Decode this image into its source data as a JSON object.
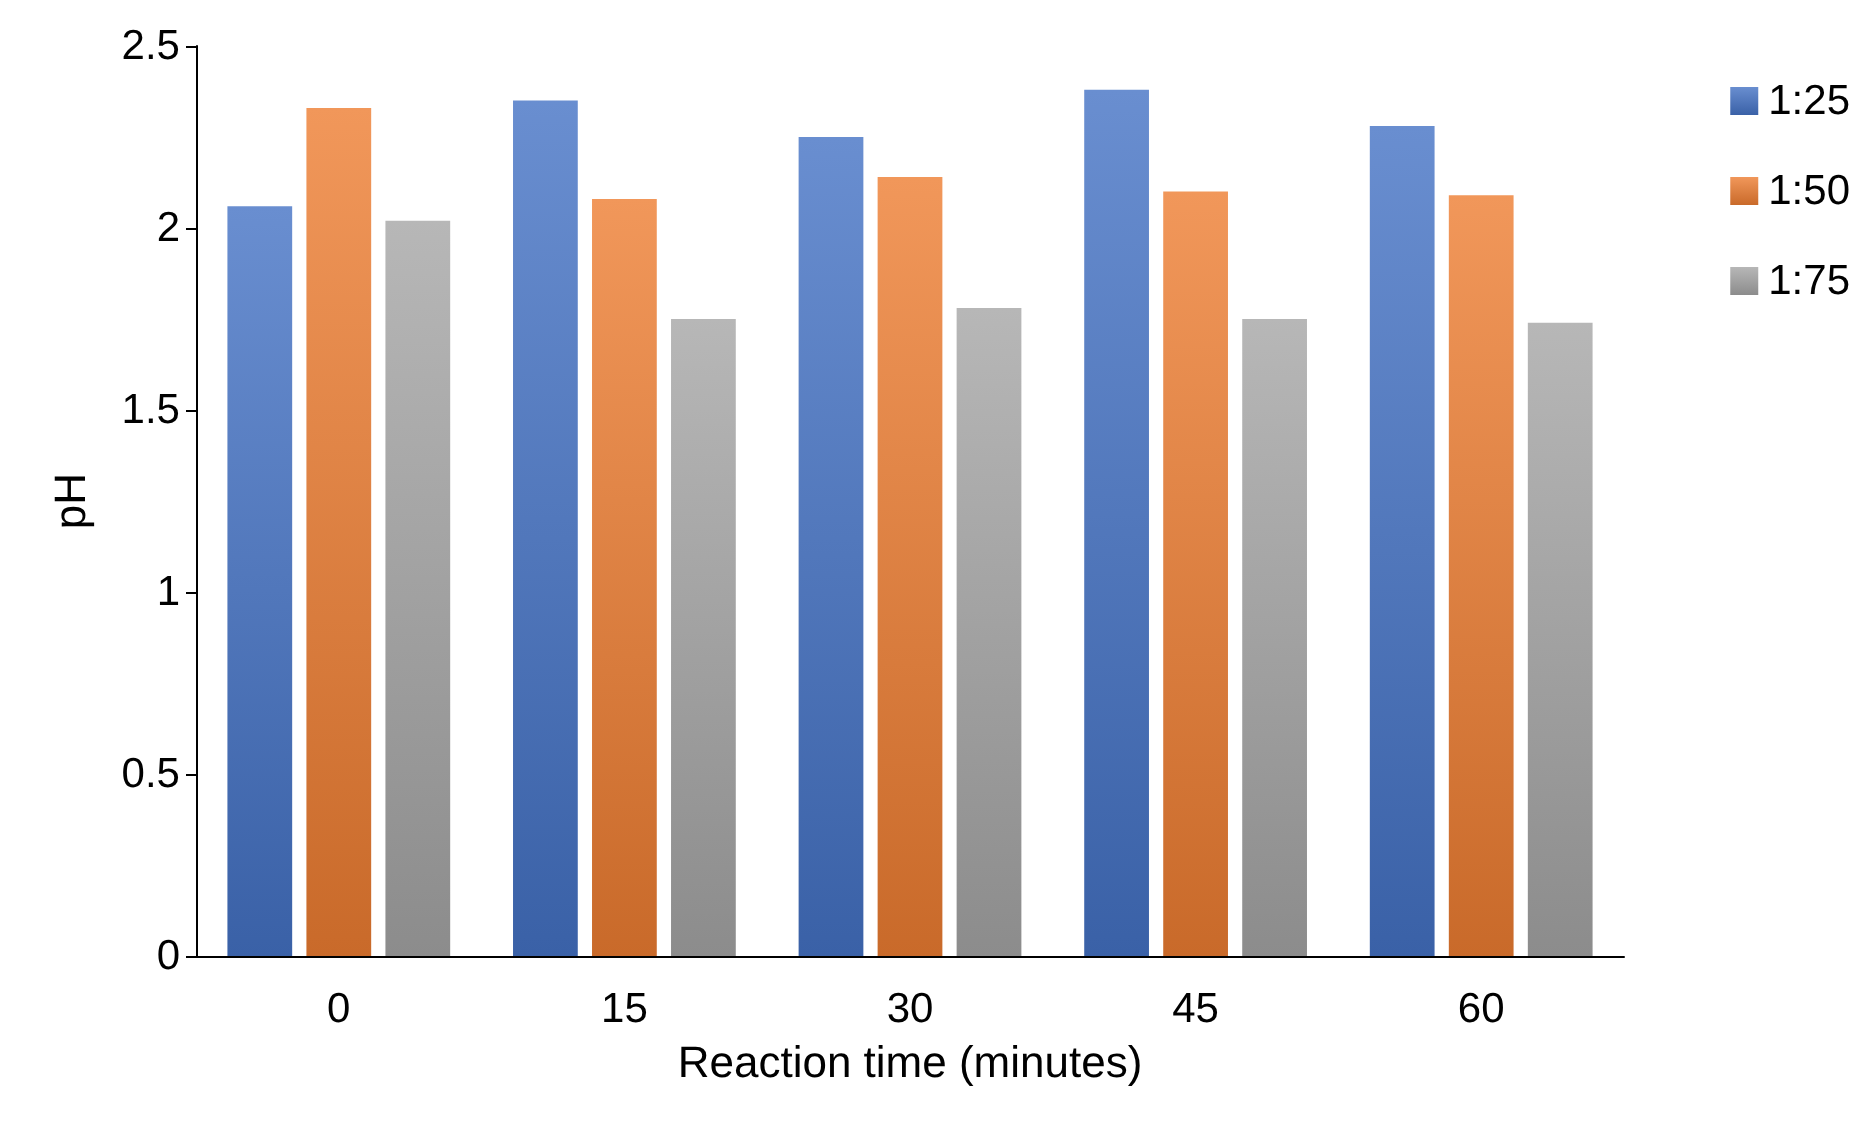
{
  "chart_data": {
    "type": "bar",
    "xlabel": "Reaction time (minutes)",
    "ylabel": "pH",
    "categories": [
      "0",
      "15",
      "30",
      "45",
      "60"
    ],
    "series": [
      {
        "name": "1:25",
        "color": "#4472c4",
        "values": [
          2.06,
          2.35,
          2.25,
          2.38,
          2.28
        ]
      },
      {
        "name": "1:50",
        "color": "#ed7d31",
        "values": [
          2.33,
          2.08,
          2.14,
          2.1,
          2.09
        ]
      },
      {
        "name": "1:75",
        "color": "#a5a5a5",
        "values": [
          2.02,
          1.75,
          1.78,
          1.75,
          1.74
        ]
      }
    ],
    "ylim": [
      0,
      2.5
    ],
    "yticks": [
      0,
      0.5,
      1,
      1.5,
      2,
      2.5
    ],
    "grid": false,
    "legend": "right"
  }
}
